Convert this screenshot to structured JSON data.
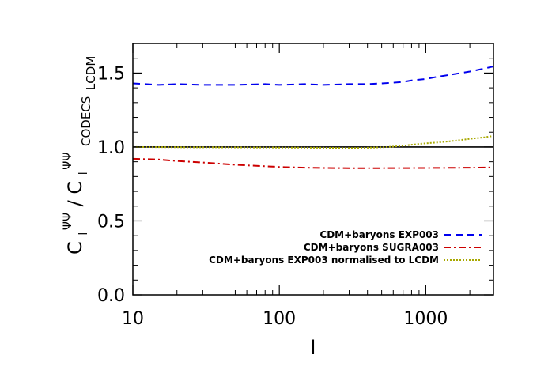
{
  "chart_data": {
    "type": "line",
    "xlabel": "l",
    "x_scale": "log",
    "xlim": [
      10,
      2900
    ],
    "ylim": [
      0.0,
      1.7
    ],
    "x_ticks": [
      {
        "value": 10,
        "label": "10"
      },
      {
        "value": 100,
        "label": "100"
      },
      {
        "value": 1000,
        "label": "1000"
      }
    ],
    "y_ticks": [
      {
        "value": 0.0,
        "label": "0.0"
      },
      {
        "value": 0.5,
        "label": "0.5"
      },
      {
        "value": 1.0,
        "label": "1.0"
      },
      {
        "value": 1.5,
        "label": "1.5"
      }
    ],
    "ylabel": {
      "c1": "C",
      "sub1": "l",
      "sup1": "ΨΨ",
      "slash": "/",
      "c2": "C",
      "sub2": "l",
      "sup2": "ΨΨ",
      "subscript": "CODECS",
      "subsub": "LCDM"
    },
    "reference_line": {
      "y": 1.0,
      "color": "#000000"
    },
    "legend_position": "bottom-right",
    "series": [
      {
        "name": "CDM+baryons EXP003",
        "color": "#0000ee",
        "dash": "dashed",
        "x": [
          10,
          15,
          20,
          30,
          50,
          80,
          100,
          150,
          200,
          300,
          400,
          500,
          600,
          700,
          800,
          1000,
          1200,
          1500,
          2000,
          2500,
          2900
        ],
        "y": [
          1.43,
          1.42,
          1.425,
          1.42,
          1.42,
          1.425,
          1.42,
          1.425,
          1.42,
          1.425,
          1.425,
          1.43,
          1.435,
          1.44,
          1.45,
          1.46,
          1.475,
          1.49,
          1.51,
          1.53,
          1.545
        ]
      },
      {
        "name": "CDM+baryons SUGRA003",
        "color": "#cc0000",
        "dash": "dashdot",
        "x": [
          10,
          15,
          20,
          30,
          50,
          80,
          100,
          150,
          200,
          300,
          500,
          1000,
          2000,
          2900
        ],
        "y": [
          0.92,
          0.915,
          0.905,
          0.895,
          0.88,
          0.87,
          0.865,
          0.86,
          0.858,
          0.857,
          0.857,
          0.858,
          0.86,
          0.862
        ]
      },
      {
        "name": "CDM+baryons EXP003 normalised to LCDM",
        "color": "#a8a800",
        "dash": "dotted",
        "x": [
          10,
          20,
          50,
          100,
          200,
          300,
          400,
          500,
          600,
          700,
          800,
          1000,
          1200,
          1500,
          2000,
          2500,
          2900
        ],
        "y": [
          1.0,
          0.998,
          0.997,
          0.996,
          0.995,
          0.993,
          0.995,
          0.998,
          1.003,
          1.008,
          1.015,
          1.025,
          1.03,
          1.04,
          1.055,
          1.065,
          1.075
        ]
      }
    ]
  }
}
